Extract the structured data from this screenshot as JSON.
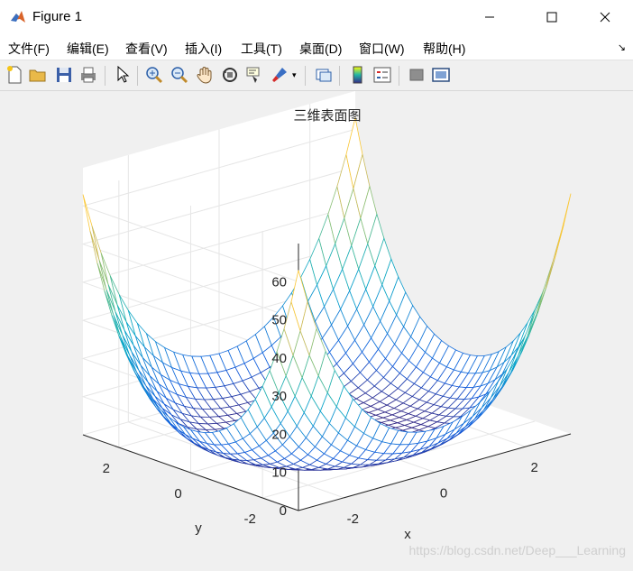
{
  "window": {
    "title": "Figure 1"
  },
  "menu": [
    "文件(F)",
    "编辑(E)",
    "查看(V)",
    "插入(I)",
    "工具(T)",
    "桌面(D)",
    "窗口(W)",
    "帮助(H)"
  ],
  "toolbar": [
    "new-figure-icon",
    "open-file-icon",
    "save-icon",
    "print-icon",
    "pointer-icon",
    "zoom-in-icon",
    "zoom-out-icon",
    "pan-hand-icon",
    "rotate-3d-icon",
    "data-cursor-icon",
    "brush-icon",
    "link-plot-icon",
    "colorbar-icon",
    "legend-icon",
    "hide-plot-tools-icon",
    "show-plot-tools-icon"
  ],
  "watermark": "https://blog.csdn.net/Deep___Learning",
  "chart_data": {
    "type": "surface-mesh",
    "title": "三维表面图",
    "xlabel": "x",
    "ylabel": "y",
    "zlabel": "",
    "xlim": [
      -3,
      3
    ],
    "ylim": [
      -3,
      3
    ],
    "zlim": [
      0,
      70
    ],
    "x_ticks": [
      -2,
      0,
      2
    ],
    "y_ticks": [
      -2,
      0,
      2
    ],
    "z_ticks": [
      0,
      10,
      20,
      30,
      40,
      50,
      60
    ],
    "function": "z = (x^2 + y^2)^2 / 4 - x^2 - y^2 (approx. shape)",
    "grid": true,
    "colormap": "parula",
    "colormap_colors": [
      "#352a87",
      "#0f5cdd",
      "#1481d6",
      "#06a4ca",
      "#2eb7a4",
      "#87bf77",
      "#d1bb59",
      "#fec832",
      "#f9fb0e"
    ],
    "view": "default 3-D view (az -37.5, el 30)"
  }
}
